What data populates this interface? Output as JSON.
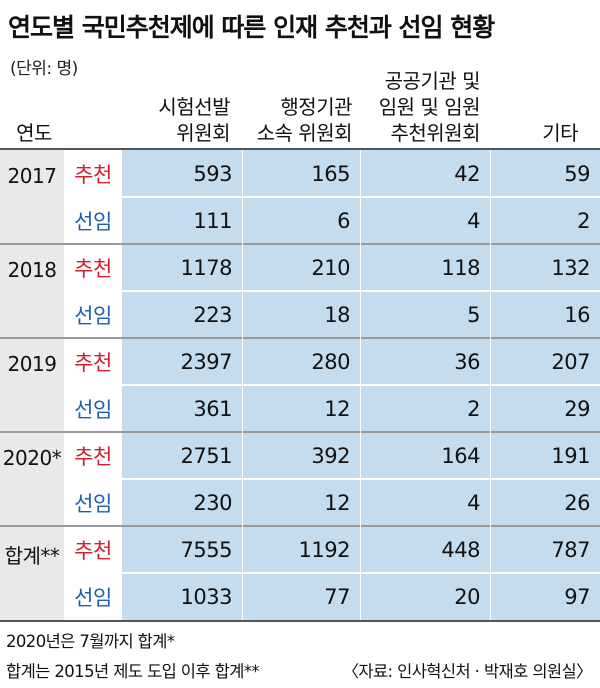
{
  "title": "연도별 국민추천제에 따른 인재 추천과 선임 현황",
  "unit": "(단위: 명)",
  "headers": {
    "year": "연도",
    "col1": [
      "시험선발",
      "위원회"
    ],
    "col2": [
      "행정기관",
      "소속 위원회"
    ],
    "col3": [
      "공공기관 및",
      "임원 및 임원",
      "추천위원회"
    ],
    "col4": [
      "기타"
    ]
  },
  "kinds": {
    "rec": "추천",
    "app": "선임"
  },
  "rows": [
    {
      "year": "2017",
      "rec": [
        "593",
        "165",
        "42",
        "59"
      ],
      "app": [
        "111",
        "6",
        "4",
        "2"
      ]
    },
    {
      "year": "2018",
      "rec": [
        "1178",
        "210",
        "118",
        "132"
      ],
      "app": [
        "223",
        "18",
        "5",
        "16"
      ]
    },
    {
      "year": "2019",
      "rec": [
        "2397",
        "280",
        "36",
        "207"
      ],
      "app": [
        "361",
        "12",
        "2",
        "29"
      ]
    },
    {
      "year": "2020*",
      "rec": [
        "2751",
        "392",
        "164",
        "191"
      ],
      "app": [
        "230",
        "12",
        "4",
        "26"
      ]
    },
    {
      "year": "합계**",
      "rec": [
        "7555",
        "1192",
        "448",
        "787"
      ],
      "app": [
        "1033",
        "77",
        "20",
        "97"
      ]
    }
  ],
  "notes": {
    "note1": "2020년은 7월까지 합계*",
    "note2": "합계는 2015년 제도 도입 이후 합계**",
    "source": "〈자료: 인사혁신처 · 박재호 의원실〉"
  },
  "colors": {
    "recommend": "#d4202a",
    "appoint": "#1f5fb0",
    "cell": "#c5dcef",
    "year_bg": "#e9e9e9"
  }
}
